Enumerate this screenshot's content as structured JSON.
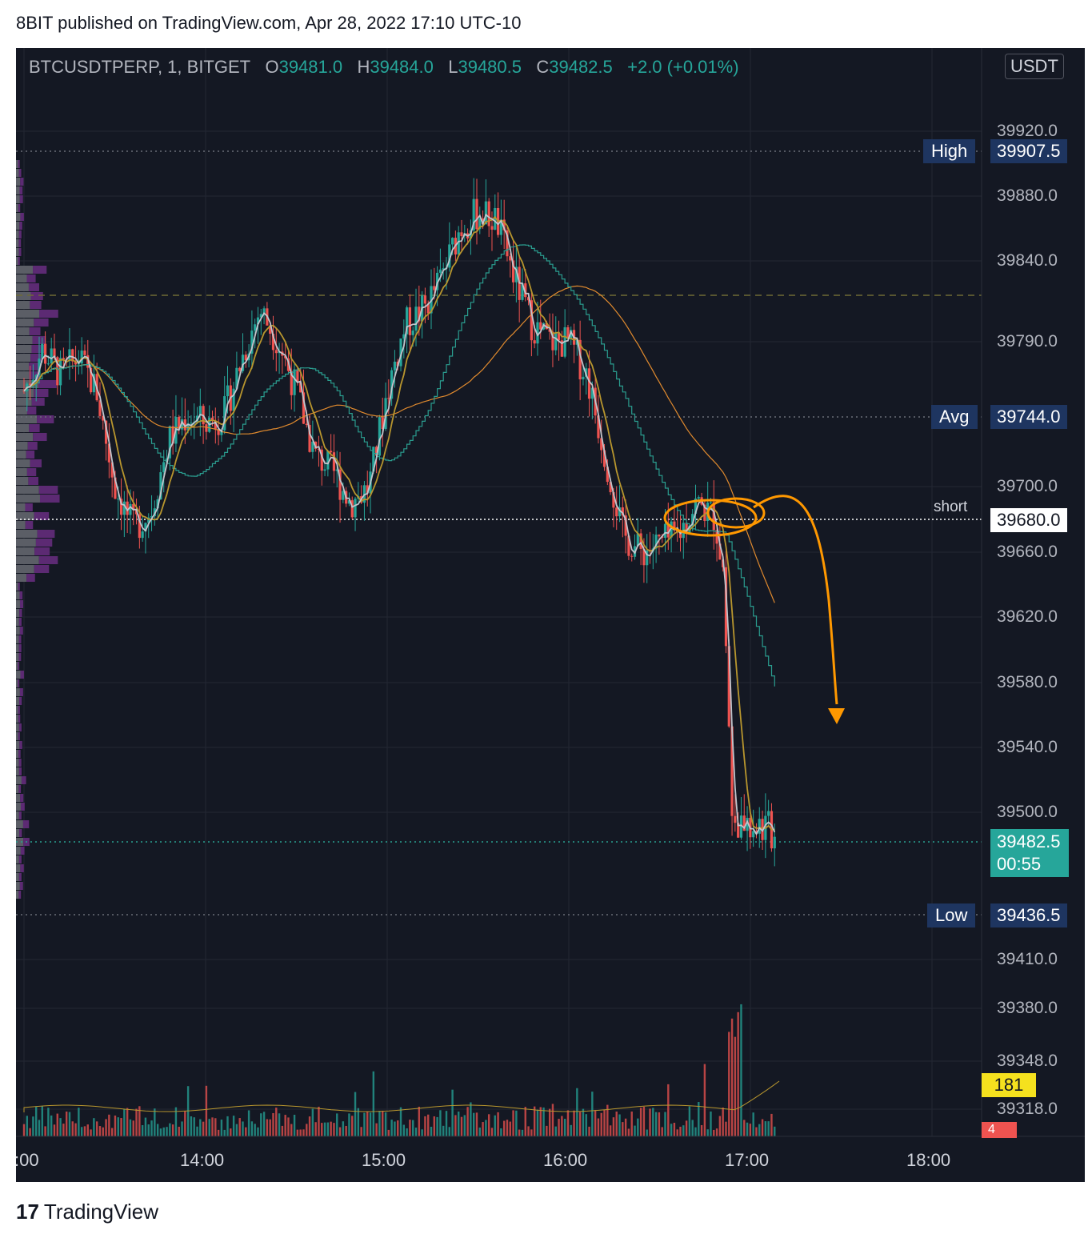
{
  "header": {
    "text": "8BIT published on TradingView.com, Apr 28, 2022 17:10 UTC-10"
  },
  "legend": {
    "symbol": "BTCUSDTPERP, 1, BITGET",
    "o_label": "O",
    "o": "39481.0",
    "h_label": "H",
    "h": "39484.0",
    "l_label": "L",
    "l": "39480.5",
    "c_label": "C",
    "c": "39482.5",
    "change": "+2.0 (+0.01%)"
  },
  "currency": "USDT",
  "footer": {
    "logo_text": "TradingView",
    "logo_mark": "17"
  },
  "colors": {
    "up": "#26a69a",
    "down": "#ef5350",
    "background": "#141823",
    "ma_fast": "#c2c5cc",
    "ma_mid": "#b8962e",
    "ma_slow": "#e08a2e",
    "vwap": "#2a9d8f",
    "annotation": "#ff9800"
  },
  "chart_data": {
    "type": "candlestick",
    "symbol": "BTCUSDTPERP",
    "interval": "1",
    "exchange": "BITGET",
    "price_ticks": [
      "39920.0",
      "39880.0",
      "39840.0",
      "39790.0",
      "39700.0",
      "39660.0",
      "39620.0",
      "39580.0",
      "39540.0",
      "39500.0",
      "39410.0",
      "39380.0",
      "39348.0",
      "39318.0"
    ],
    "time_ticks": [
      ":00",
      "14:00",
      "15:00",
      "16:00",
      "17:00",
      "18:00"
    ],
    "levels": {
      "high": {
        "label": "High",
        "value": "39907.5"
      },
      "avg": {
        "label": "Avg",
        "value": "39744.0"
      },
      "short": {
        "label": "short",
        "value": "39680.0"
      },
      "low": {
        "label": "Low",
        "value": "39436.5"
      },
      "last": {
        "value": "39482.5",
        "countdown": "00:55"
      }
    },
    "volume": {
      "ma_label": "181",
      "last_label": "4"
    },
    "price_path": [
      [
        13.0,
        39760
      ],
      [
        13.1,
        39785
      ],
      [
        13.2,
        39770
      ],
      [
        13.3,
        39780
      ],
      [
        13.4,
        39760
      ],
      [
        13.5,
        39700
      ],
      [
        13.6,
        39675
      ],
      [
        13.7,
        39685
      ],
      [
        13.8,
        39730
      ],
      [
        13.9,
        39745
      ],
      [
        14.0,
        39740
      ],
      [
        14.1,
        39745
      ],
      [
        14.2,
        39780
      ],
      [
        14.3,
        39810
      ],
      [
        14.4,
        39790
      ],
      [
        14.5,
        39760
      ],
      [
        14.6,
        39720
      ],
      [
        14.7,
        39710
      ],
      [
        14.8,
        39690
      ],
      [
        14.9,
        39700
      ],
      [
        15.0,
        39760
      ],
      [
        15.1,
        39800
      ],
      [
        15.2,
        39810
      ],
      [
        15.3,
        39830
      ],
      [
        15.4,
        39860
      ],
      [
        15.5,
        39870
      ],
      [
        15.6,
        39865
      ],
      [
        15.7,
        39830
      ],
      [
        15.8,
        39800
      ],
      [
        15.9,
        39790
      ],
      [
        16.0,
        39790
      ],
      [
        16.1,
        39770
      ],
      [
        16.2,
        39720
      ],
      [
        16.3,
        39670
      ],
      [
        16.4,
        39660
      ],
      [
        16.5,
        39665
      ],
      [
        16.6,
        39670
      ],
      [
        16.7,
        39690
      ],
      [
        16.8,
        39682
      ],
      [
        16.85,
        39650
      ],
      [
        16.9,
        39500
      ],
      [
        16.95,
        39490
      ],
      [
        17.0,
        39495
      ],
      [
        17.1,
        39490
      ],
      [
        17.15,
        39482.5
      ]
    ]
  }
}
